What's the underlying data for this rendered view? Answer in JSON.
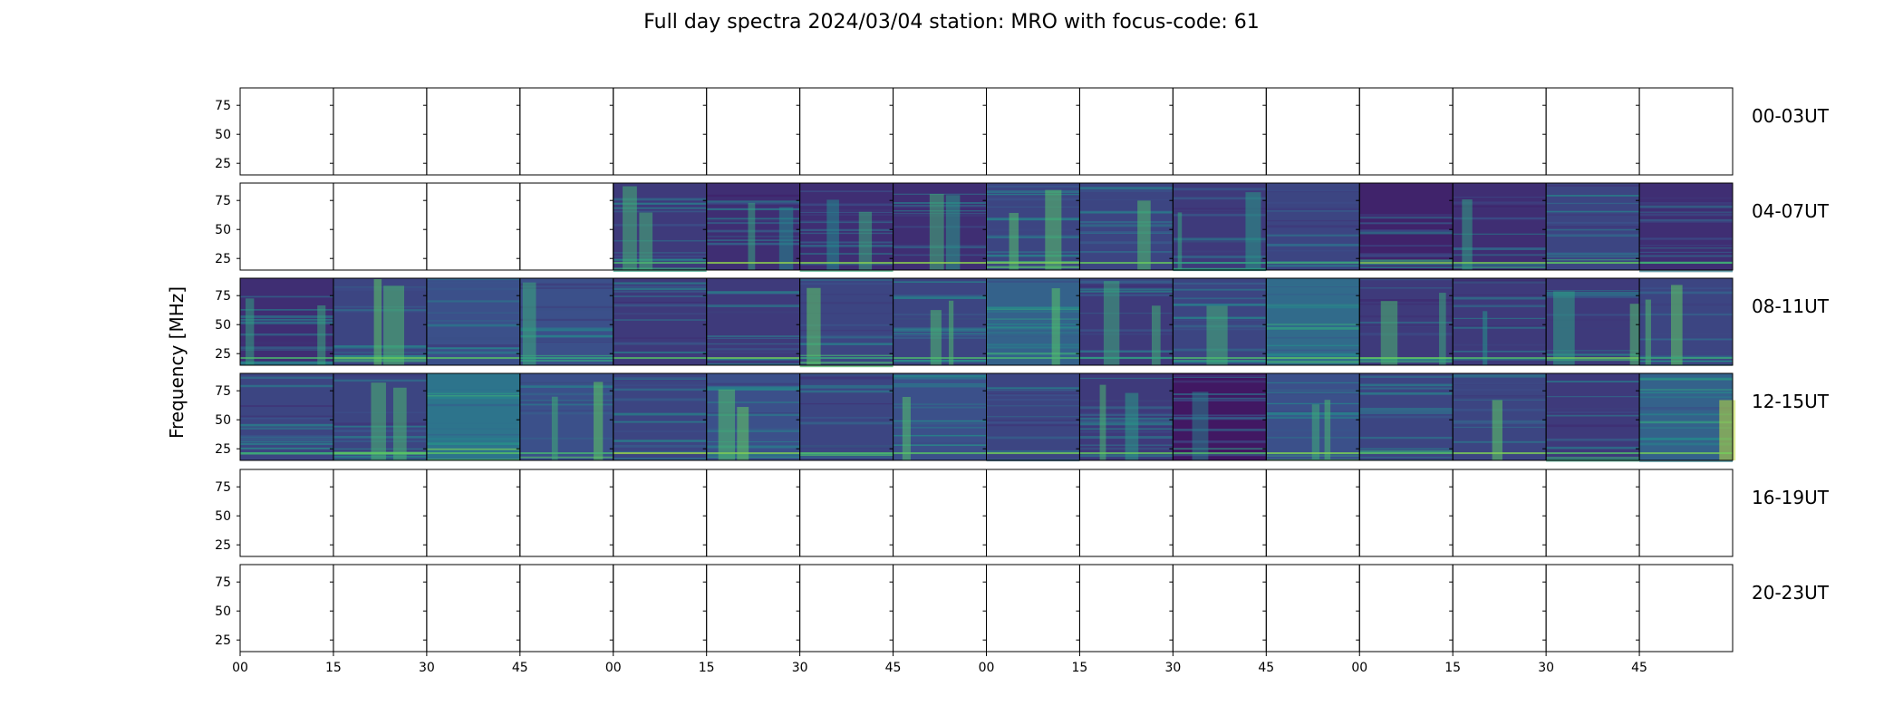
{
  "chart_data": {
    "type": "heatmap",
    "title": "Full day spectra 2024/03/04 station: MRO with focus-code: 61",
    "ylabel": "Frequency [MHz]",
    "xlabel": "",
    "colormap": "viridis",
    "yticks": [
      25,
      50,
      75
    ],
    "ylim": [
      15,
      90
    ],
    "xtick_labels": [
      "00",
      "15",
      "30",
      "45",
      "00",
      "15",
      "30",
      "45",
      "00",
      "15",
      "30",
      "45",
      "00",
      "15",
      "30",
      "45"
    ],
    "panels_per_row": 16,
    "rows": [
      {
        "label": "00-03UT",
        "has_data": [
          0,
          0,
          0,
          0,
          0,
          0,
          0,
          0,
          0,
          0,
          0,
          0,
          0,
          0,
          0,
          0
        ],
        "intensity": [
          0,
          0,
          0,
          0,
          0,
          0,
          0,
          0,
          0,
          0,
          0,
          0,
          0,
          0,
          0,
          0
        ]
      },
      {
        "label": "04-07UT",
        "has_data": [
          0,
          0,
          0,
          0,
          1,
          1,
          1,
          1,
          1,
          1,
          1,
          1,
          1,
          1,
          1,
          1
        ],
        "intensity": [
          0,
          0,
          0,
          0,
          0.25,
          0.2,
          0.2,
          0.2,
          0.3,
          0.3,
          0.25,
          0.3,
          0.15,
          0.2,
          0.3,
          0.2
        ]
      },
      {
        "label": "08-11UT",
        "has_data": [
          1,
          1,
          1,
          1,
          1,
          1,
          1,
          1,
          1,
          1,
          1,
          1,
          1,
          1,
          1,
          1
        ],
        "intensity": [
          0.2,
          0.3,
          0.35,
          0.35,
          0.25,
          0.25,
          0.3,
          0.3,
          0.45,
          0.25,
          0.3,
          0.5,
          0.25,
          0.25,
          0.25,
          0.3
        ]
      },
      {
        "label": "12-15UT",
        "has_data": [
          1,
          1,
          1,
          1,
          1,
          1,
          1,
          1,
          1,
          1,
          1,
          1,
          1,
          1,
          1,
          1
        ],
        "intensity": [
          0.3,
          0.3,
          0.55,
          0.35,
          0.3,
          0.35,
          0.3,
          0.35,
          0.3,
          0.25,
          0.1,
          0.35,
          0.3,
          0.3,
          0.25,
          0.45
        ]
      },
      {
        "label": "16-19UT",
        "has_data": [
          0,
          0,
          0,
          0,
          0,
          0,
          0,
          0,
          0,
          0,
          0,
          0,
          0,
          0,
          0,
          0
        ],
        "intensity": [
          0,
          0,
          0,
          0,
          0,
          0,
          0,
          0,
          0,
          0,
          0,
          0,
          0,
          0,
          0,
          0
        ]
      },
      {
        "label": "20-23UT",
        "has_data": [
          0,
          0,
          0,
          0,
          0,
          0,
          0,
          0,
          0,
          0,
          0,
          0,
          0,
          0,
          0,
          0
        ],
        "intensity": [
          0,
          0,
          0,
          0,
          0,
          0,
          0,
          0,
          0,
          0,
          0,
          0,
          0,
          0,
          0,
          0
        ]
      }
    ]
  }
}
